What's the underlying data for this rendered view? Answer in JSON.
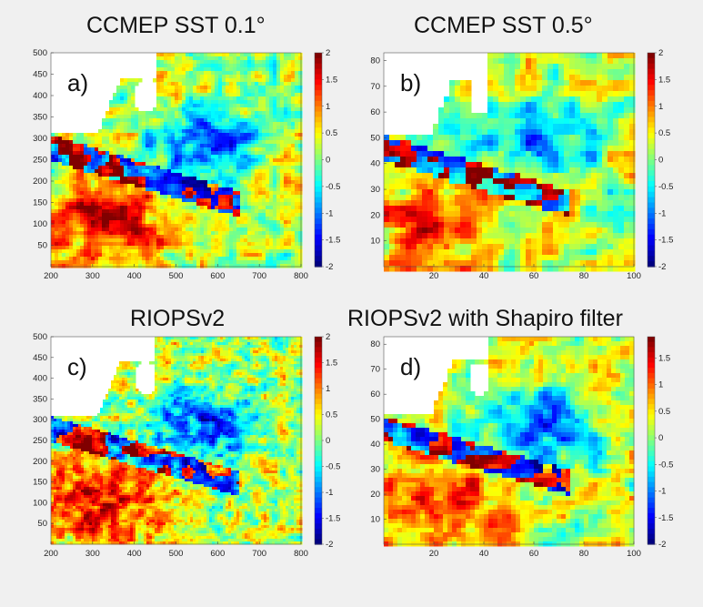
{
  "figure": {
    "panels": [
      {
        "title": "CCMEP SST 0.1°",
        "label": "a)",
        "xticks": [
          "200",
          "300",
          "400",
          "500",
          "600",
          "700",
          "800"
        ],
        "yticks": [
          "50",
          "100",
          "150",
          "200",
          "250",
          "300",
          "350",
          "400",
          "450",
          "500"
        ],
        "cbar_ticks": [
          "2",
          "1.5",
          "1",
          "0.5",
          "0",
          "-0.5",
          "-1",
          "-1.5",
          "-2"
        ]
      },
      {
        "title": "CCMEP SST 0.5°",
        "label": "b)",
        "xticks": [
          "20",
          "40",
          "60",
          "80",
          "100"
        ],
        "yticks": [
          "10",
          "20",
          "30",
          "40",
          "50",
          "60",
          "70",
          "80"
        ],
        "cbar_ticks": [
          "2",
          "1.5",
          "1",
          "0.5",
          "0",
          "-0.5",
          "-1",
          "-1.5",
          "-2"
        ]
      },
      {
        "title": "RIOPSv2",
        "label": "c)",
        "xticks": [
          "200",
          "300",
          "400",
          "500",
          "600",
          "700",
          "800"
        ],
        "yticks": [
          "50",
          "100",
          "150",
          "200",
          "250",
          "300",
          "350",
          "400",
          "450",
          "500"
        ],
        "cbar_ticks": [
          "2",
          "1.5",
          "1",
          "0.5",
          "0",
          "-0.5",
          "-1",
          "-1.5",
          "-2"
        ]
      },
      {
        "title": "RIOPSv2 with Shapiro filter",
        "label": "d)",
        "xticks": [
          "20",
          "40",
          "60",
          "80",
          "100"
        ],
        "yticks": [
          "10",
          "20",
          "30",
          "40",
          "50",
          "60",
          "70",
          "80"
        ],
        "cbar_ticks": [
          "1.5",
          "1",
          "0.5",
          "0",
          "-0.5",
          "-1",
          "-1.5",
          "-2"
        ]
      }
    ]
  },
  "chart_data": [
    {
      "type": "heatmap",
      "title": "CCMEP SST 0.1°",
      "xlim": [
        200,
        800
      ],
      "ylim": [
        0,
        500
      ],
      "clim": [
        -2,
        2
      ],
      "colormap": "jet"
    },
    {
      "type": "heatmap",
      "title": "CCMEP SST 0.5°",
      "xlim": [
        0,
        100
      ],
      "ylim": [
        0,
        83
      ],
      "clim": [
        -2,
        2
      ],
      "colormap": "jet"
    },
    {
      "type": "heatmap",
      "title": "RIOPSv2",
      "xlim": [
        200,
        800
      ],
      "ylim": [
        0,
        500
      ],
      "clim": [
        -2,
        2
      ],
      "colormap": "jet"
    },
    {
      "type": "heatmap",
      "title": "RIOPSv2 with Shapiro filter",
      "xlim": [
        0,
        100
      ],
      "ylim": [
        0,
        83
      ],
      "clim": [
        -2,
        1.9
      ],
      "colormap": "jet"
    }
  ]
}
